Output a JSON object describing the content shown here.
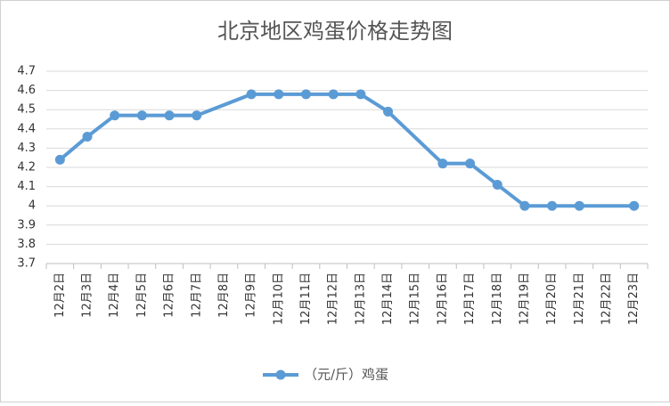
{
  "chart_data": {
    "type": "line",
    "title": "北京地区鸡蛋价格走势图",
    "categories": [
      "12月2日",
      "12月3日",
      "12月4日",
      "12月5日",
      "12月6日",
      "12月7日",
      "12月8日",
      "12月9日",
      "12月10日",
      "12月11日",
      "12月12日",
      "12月13日",
      "12月14日",
      "12月15日",
      "12月16日",
      "12月17日",
      "12月18日",
      "12月19日",
      "12月20日",
      "12月21日",
      "12月22日",
      "12月23日"
    ],
    "series": [
      {
        "name": "（元/斤）鸡蛋",
        "color": "#5b9bd5",
        "values": [
          4.24,
          4.36,
          4.47,
          4.47,
          4.47,
          4.47,
          null,
          4.58,
          4.58,
          4.58,
          4.58,
          4.58,
          4.49,
          null,
          4.22,
          4.22,
          4.11,
          4.0,
          4.0,
          4.0,
          null,
          4.0
        ]
      }
    ],
    "ylim": [
      3.7,
      4.7
    ],
    "yticks": [
      3.7,
      3.8,
      3.9,
      4,
      4.1,
      4.2,
      4.3,
      4.4,
      4.5,
      4.6,
      4.7
    ],
    "grid": true,
    "span_gaps": true,
    "legend": "bottom"
  }
}
